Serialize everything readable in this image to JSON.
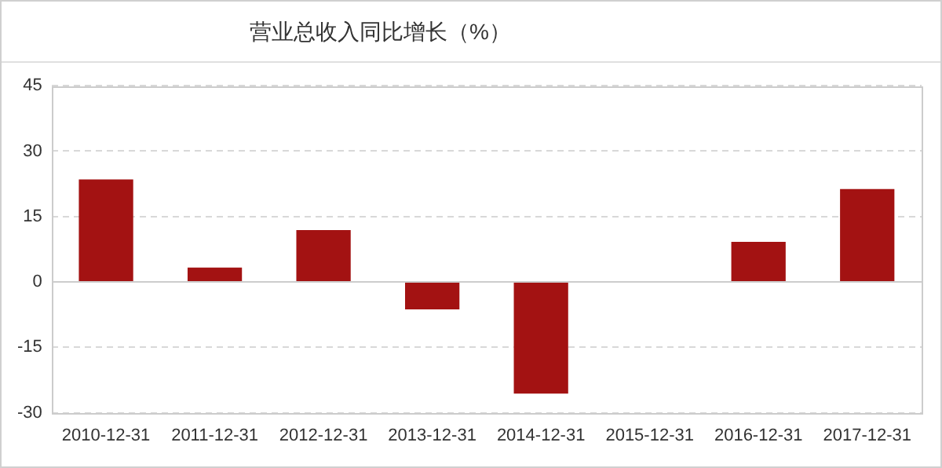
{
  "chart_data": {
    "type": "bar",
    "title": "营业总收入同比增长（%）",
    "categories": [
      "2010-12-31",
      "2011-12-31",
      "2012-12-31",
      "2013-12-31",
      "2014-12-31",
      "2015-12-31",
      "2016-12-31",
      "2017-12-31"
    ],
    "values": [
      23.5,
      3.3,
      11.9,
      -6.3,
      -25.6,
      null,
      9.2,
      21.3
    ],
    "color": "#a31212",
    "ylim": [
      -30,
      45
    ],
    "yticks": [
      -30,
      -15,
      0,
      15,
      30,
      45
    ],
    "grid": "y"
  }
}
